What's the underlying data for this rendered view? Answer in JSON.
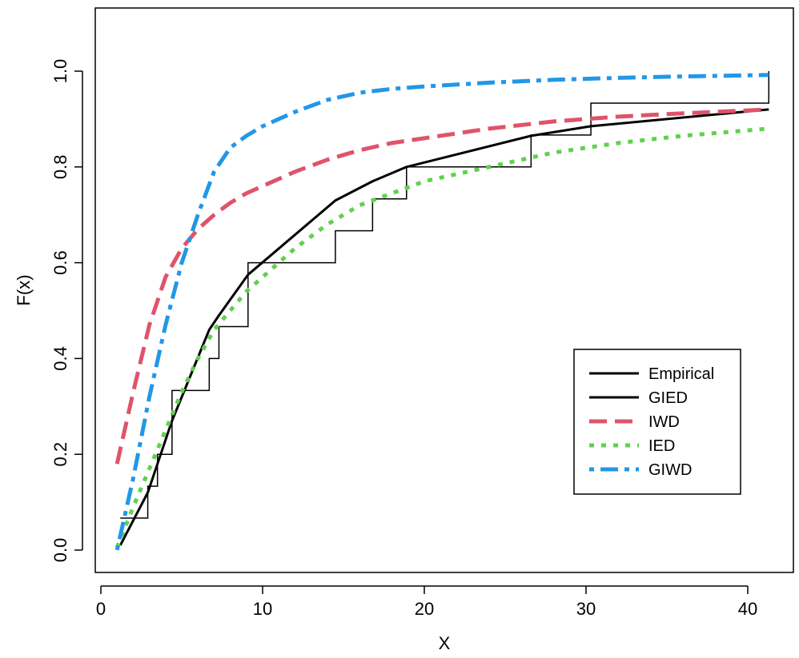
{
  "chart_data": {
    "type": "line",
    "title": "",
    "xlabel": "X",
    "ylabel": "F(x)",
    "xlim": [
      0,
      42
    ],
    "ylim": [
      -0.03,
      1.12
    ],
    "x_ticks": [
      0,
      10,
      20,
      30,
      40
    ],
    "x_tick_labels": [
      "0",
      "10",
      "20",
      "30",
      "40"
    ],
    "y_ticks": [
      0.0,
      0.2,
      0.4,
      0.6,
      0.8,
      1.0
    ],
    "y_tick_labels": [
      "0.0",
      "0.2",
      "0.4",
      "0.6",
      "0.8",
      "1.0"
    ],
    "grid": false,
    "legend_position": "bottom-right",
    "empirical_steps": {
      "x": [
        1.2,
        2.9,
        3.5,
        4.4,
        6.7,
        7.3,
        9.1,
        14.5,
        16.8,
        18.9,
        26.6,
        30.3,
        41.3
      ],
      "y": [
        0.0667,
        0.1333,
        0.2,
        0.3333,
        0.4,
        0.4667,
        0.6,
        0.6667,
        0.7333,
        0.8,
        0.8667,
        0.9333,
        1.0
      ]
    },
    "series": [
      {
        "name": "Empirical",
        "color": "#000000",
        "style": "solid-thick",
        "x": [
          1.2,
          2.9,
          3.5,
          4.4,
          6.7,
          7.3,
          9.1,
          14.5,
          16.8,
          18.9,
          26.6,
          30.3,
          41.3
        ],
        "y": [
          0.01,
          0.12,
          0.18,
          0.27,
          0.46,
          0.49,
          0.575,
          0.73,
          0.77,
          0.8,
          0.865,
          0.885,
          0.92
        ]
      },
      {
        "name": "GIED",
        "color": "#000000",
        "style": "solid-thick",
        "x": [
          1.2,
          2.9,
          3.5,
          4.4,
          6.7,
          7.3,
          9.1,
          14.5,
          16.8,
          18.9,
          26.6,
          30.3,
          41.3
        ],
        "y": [
          0.01,
          0.12,
          0.18,
          0.27,
          0.46,
          0.49,
          0.575,
          0.73,
          0.77,
          0.8,
          0.865,
          0.885,
          0.92
        ]
      },
      {
        "name": "IWD",
        "color": "#df536b",
        "style": "dashed",
        "x": [
          1.0,
          2.0,
          3.0,
          4.0,
          5.0,
          6.0,
          7.0,
          8.0,
          9.0,
          10.0,
          12.0,
          14.0,
          16.0,
          18.0,
          20.0,
          24.0,
          28.0,
          32.0,
          36.0,
          41.3
        ],
        "y": [
          0.18,
          0.33,
          0.47,
          0.57,
          0.63,
          0.67,
          0.7,
          0.725,
          0.745,
          0.76,
          0.79,
          0.815,
          0.835,
          0.85,
          0.86,
          0.88,
          0.895,
          0.905,
          0.912,
          0.92
        ]
      },
      {
        "name": "IED",
        "color": "#61d04f",
        "style": "dotted",
        "x": [
          1.0,
          2.0,
          3.0,
          4.0,
          5.0,
          6.0,
          7.0,
          8.0,
          9.0,
          10.0,
          12.0,
          14.0,
          16.0,
          18.0,
          20.0,
          24.0,
          28.0,
          32.0,
          36.0,
          41.3
        ],
        "y": [
          0.005,
          0.09,
          0.17,
          0.25,
          0.33,
          0.4,
          0.46,
          0.5,
          0.54,
          0.57,
          0.63,
          0.68,
          0.72,
          0.745,
          0.77,
          0.8,
          0.83,
          0.85,
          0.865,
          0.88
        ]
      },
      {
        "name": "GIWD",
        "color": "#2297e6",
        "style": "dotdash",
        "x": [
          1.0,
          2.0,
          3.0,
          4.0,
          5.0,
          6.0,
          7.0,
          8.0,
          9.0,
          10.0,
          12.0,
          14.0,
          16.0,
          18.0,
          20.0,
          24.0,
          28.0,
          32.0,
          36.0,
          41.3
        ],
        "y": [
          0.0,
          0.15,
          0.32,
          0.47,
          0.6,
          0.7,
          0.79,
          0.84,
          0.865,
          0.885,
          0.915,
          0.94,
          0.955,
          0.963,
          0.968,
          0.976,
          0.982,
          0.986,
          0.989,
          0.992
        ]
      }
    ]
  }
}
